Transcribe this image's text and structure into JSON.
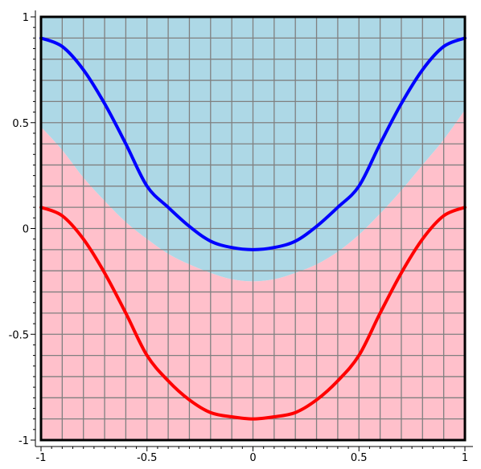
{
  "chart_data": {
    "type": "area",
    "title": "",
    "xlabel": "",
    "ylabel": "",
    "xlim": [
      -1,
      1
    ],
    "ylim": [
      -1,
      1
    ],
    "grid": true,
    "x_ticks": [
      {
        "value": -1,
        "label": "-1"
      },
      {
        "value": -0.5,
        "label": "-0.5"
      },
      {
        "value": 0,
        "label": "0"
      },
      {
        "value": 0.5,
        "label": "0.5"
      },
      {
        "value": 1,
        "label": "1"
      }
    ],
    "y_ticks": [
      {
        "value": 1,
        "label": "1"
      },
      {
        "value": 0.5,
        "label": "0.5"
      },
      {
        "value": 0,
        "label": "0"
      },
      {
        "value": -0.5,
        "label": "-0.5"
      },
      {
        "value": -1,
        "label": "-1"
      }
    ],
    "grid_lines_x": [
      -1,
      -0.9,
      -0.8,
      -0.7,
      -0.6,
      -0.5,
      -0.4,
      -0.3,
      -0.2,
      -0.1,
      0,
      0.1,
      0.2,
      0.3,
      0.4,
      0.5,
      0.6,
      0.7,
      0.8,
      0.9,
      1
    ],
    "grid_lines_y": [
      -1,
      -0.9,
      -0.8,
      -0.7,
      -0.6,
      -0.5,
      -0.4,
      -0.3,
      -0.2,
      -0.1,
      0,
      0.1,
      0.2,
      0.3,
      0.4,
      0.5,
      0.6,
      0.7,
      0.8,
      0.9,
      1
    ],
    "regions": [
      {
        "color": "#add8e6",
        "boundary_x": [
          -1,
          -0.9,
          -0.8,
          -0.7,
          -0.6,
          -0.5,
          -0.4,
          -0.3,
          -0.2,
          -0.1,
          0,
          0.1,
          0.2,
          0.3,
          0.4,
          0.5,
          0.6,
          0.7,
          0.8,
          0.9,
          1
        ],
        "boundary_y": [
          0.48,
          0.37,
          0.24,
          0.13,
          0.03,
          -0.05,
          -0.12,
          -0.17,
          -0.21,
          -0.24,
          -0.25,
          -0.24,
          -0.21,
          -0.17,
          -0.11,
          -0.03,
          0.07,
          0.18,
          0.3,
          0.42,
          0.56
        ],
        "fill_to": 1
      },
      {
        "color": "#ffc0cb",
        "boundary_x": [
          -1,
          -0.9,
          -0.8,
          -0.7,
          -0.6,
          -0.5,
          -0.4,
          -0.3,
          -0.2,
          -0.1,
          0,
          0.1,
          0.2,
          0.3,
          0.4,
          0.5,
          0.6,
          0.7,
          0.8,
          0.9,
          1
        ],
        "boundary_y": [
          0.48,
          0.37,
          0.24,
          0.13,
          0.03,
          -0.05,
          -0.12,
          -0.17,
          -0.21,
          -0.24,
          -0.25,
          -0.24,
          -0.21,
          -0.17,
          -0.11,
          -0.03,
          0.07,
          0.18,
          0.3,
          0.42,
          0.56
        ],
        "fill_to": -1
      }
    ],
    "series": [
      {
        "color": "#0000ff",
        "x": [
          -1,
          -0.9,
          -0.8,
          -0.7,
          -0.6,
          -0.5,
          -0.4,
          -0.3,
          -0.2,
          -0.1,
          0,
          0.1,
          0.2,
          0.3,
          0.4,
          0.5,
          0.6,
          0.7,
          0.8,
          0.9,
          1
        ],
        "y": [
          0.9,
          0.86,
          0.75,
          0.59,
          0.4,
          0.2,
          0.1,
          0.01,
          -0.06,
          -0.09,
          -0.1,
          -0.09,
          -0.06,
          0.01,
          0.1,
          0.2,
          0.4,
          0.59,
          0.75,
          0.86,
          0.9
        ]
      },
      {
        "color": "#ff0000",
        "x": [
          -1,
          -0.9,
          -0.8,
          -0.7,
          -0.6,
          -0.5,
          -0.4,
          -0.3,
          -0.2,
          -0.1,
          0,
          0.1,
          0.2,
          0.3,
          0.4,
          0.5,
          0.6,
          0.7,
          0.8,
          0.9,
          1
        ],
        "y": [
          0.1,
          0.06,
          -0.05,
          -0.21,
          -0.4,
          -0.6,
          -0.72,
          -0.81,
          -0.87,
          -0.89,
          -0.9,
          -0.89,
          -0.87,
          -0.81,
          -0.72,
          -0.6,
          -0.4,
          -0.21,
          -0.05,
          0.06,
          0.1
        ]
      }
    ]
  }
}
